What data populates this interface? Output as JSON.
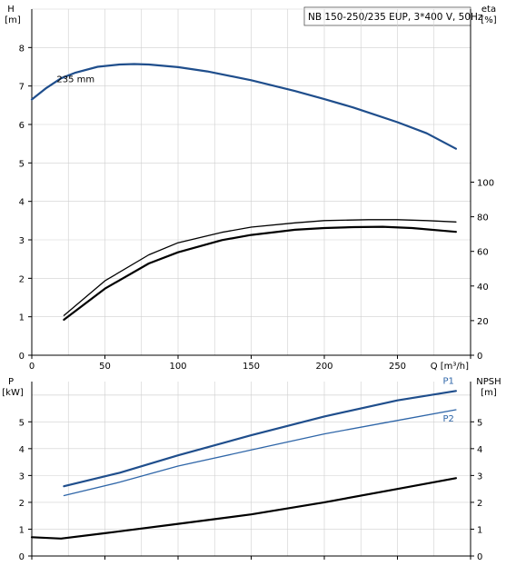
{
  "header_label": "NB 150-250/235 EUP, 3*400 V, 50Hz",
  "colors": {
    "pump_blue": "#1f4e8c",
    "thin_blue": "#2f66a8",
    "black": "#000000",
    "grid": "#cfcfcf"
  },
  "chart_data": [
    {
      "type": "line",
      "ylabel": "H",
      "yunit": "[m]",
      "y2label": "eta",
      "y2unit": "[%]",
      "xlabel": "Q [m³/h]",
      "xlim": [
        0,
        300
      ],
      "ylim": [
        0,
        9
      ],
      "y2lim": [
        0,
        100
      ],
      "xticks": [
        0,
        50,
        100,
        150,
        200,
        250
      ],
      "yticks": [
        0,
        1,
        2,
        3,
        4,
        5,
        6,
        7,
        8
      ],
      "y2ticks": [
        0,
        20,
        40,
        60,
        80,
        100
      ],
      "curve_label": "235 mm",
      "series": [
        {
          "axis": "left",
          "style": "head",
          "x": [
            0,
            10,
            20,
            30,
            45,
            60,
            70,
            80,
            100,
            120,
            150,
            180,
            200,
            220,
            250,
            270,
            290
          ],
          "y": [
            6.65,
            6.95,
            7.2,
            7.35,
            7.5,
            7.56,
            7.57,
            7.56,
            7.49,
            7.38,
            7.15,
            6.87,
            6.66,
            6.44,
            6.06,
            5.77,
            5.37
          ]
        },
        {
          "axis": "right",
          "style": "eta",
          "x": [
            22,
            50,
            80,
            100,
            130,
            150,
            180,
            200,
            220,
            240,
            260,
            290
          ],
          "y": [
            20.5,
            38.5,
            53,
            59.5,
            66.5,
            69.5,
            72.5,
            73.5,
            74,
            74.2,
            73.5,
            71.3
          ]
        },
        {
          "axis": "right",
          "style": "eta2",
          "x": [
            22,
            50,
            80,
            100,
            130,
            150,
            180,
            200,
            230,
            250,
            270,
            290
          ],
          "y": [
            23,
            43,
            58,
            65,
            71,
            74,
            76.5,
            77.8,
            78.3,
            78.3,
            77.8,
            77
          ]
        }
      ]
    },
    {
      "type": "line",
      "ylabel": "P",
      "yunit": "[kW]",
      "y2label": "NPSH",
      "y2unit": "[m]",
      "xlim": [
        0,
        300
      ],
      "ylim": [
        0,
        6
      ],
      "y2lim": [
        0,
        6
      ],
      "yticks": [
        0,
        1,
        2,
        3,
        4,
        5
      ],
      "y2ticks": [
        0,
        1,
        2,
        3,
        4,
        5
      ],
      "series": [
        {
          "axis": "left",
          "name": "P1",
          "style": "p1",
          "x": [
            22,
            60,
            100,
            150,
            200,
            250,
            290
          ],
          "y": [
            2.6,
            3.1,
            3.75,
            4.5,
            5.2,
            5.8,
            6.15
          ]
        },
        {
          "axis": "left",
          "name": "P2",
          "style": "p2",
          "x": [
            22,
            60,
            100,
            150,
            200,
            250,
            290
          ],
          "y": [
            2.25,
            2.75,
            3.35,
            3.95,
            4.55,
            5.05,
            5.45
          ]
        },
        {
          "axis": "right",
          "style": "npsh",
          "x": [
            0,
            20,
            50,
            100,
            150,
            200,
            250,
            290
          ],
          "y": [
            0.7,
            0.65,
            0.85,
            1.2,
            1.55,
            2.0,
            2.5,
            2.9
          ]
        }
      ]
    }
  ]
}
